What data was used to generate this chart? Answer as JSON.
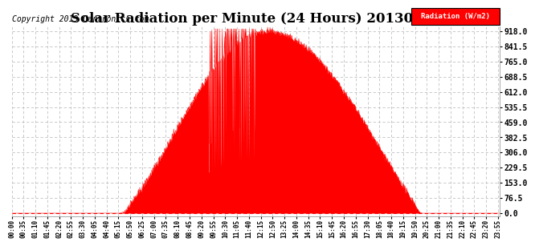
{
  "title": "Solar Radiation per Minute (24 Hours) 20130518",
  "copyright_text": "Copyright 2013 Cartronics.com",
  "legend_label": "Radiation (W/m2)",
  "yticks": [
    0.0,
    76.5,
    153.0,
    229.5,
    306.0,
    382.5,
    459.0,
    535.5,
    612.0,
    688.5,
    765.0,
    841.5,
    918.0
  ],
  "ymax": 940,
  "ymin": -15,
  "area_color": "#FF0000",
  "background_color": "#FFFFFF",
  "grid_color": "#C0C0C0",
  "title_fontsize": 12,
  "copyright_fontsize": 7,
  "legend_bg_color": "#FF0000",
  "legend_text_color": "#FFFFFF",
  "tick_interval_min": 35,
  "sunrise_min": 315,
  "sunset_min": 1215,
  "solar_noon_min": 752,
  "peak_value": 918.0
}
